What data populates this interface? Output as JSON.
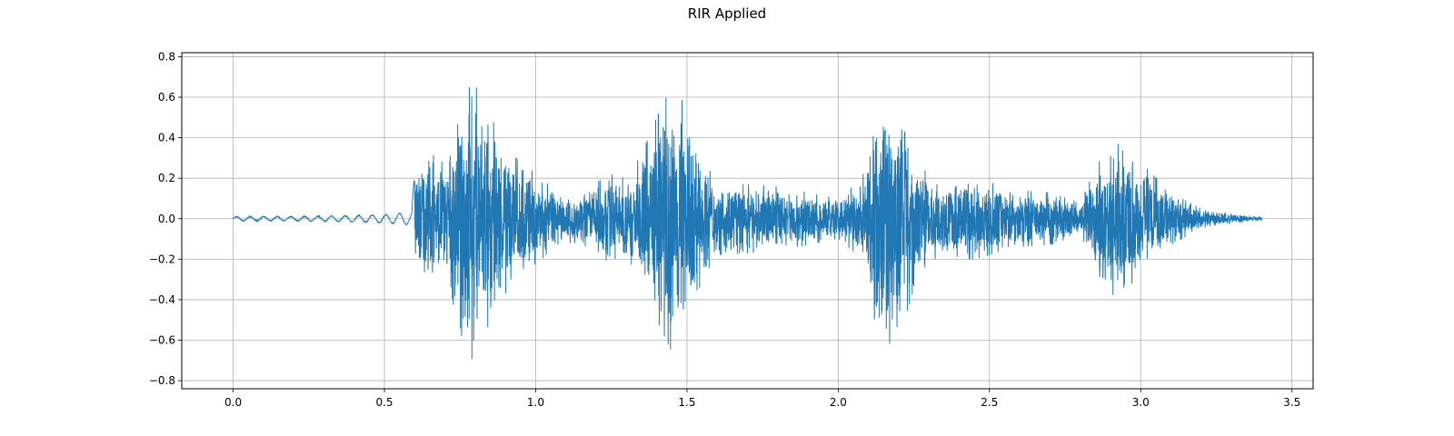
{
  "chart_data": {
    "type": "line",
    "title": "RIR Applied",
    "xlabel": "",
    "ylabel": "",
    "xlim": [
      -0.17,
      3.57
    ],
    "ylim": [
      -0.84,
      0.82
    ],
    "x_ticks": [
      0.0,
      0.5,
      1.0,
      1.5,
      2.0,
      2.5,
      3.0,
      3.5
    ],
    "x_tick_labels": [
      "0.0",
      "0.5",
      "1.0",
      "1.5",
      "2.0",
      "2.5",
      "3.0",
      "3.5"
    ],
    "y_ticks": [
      0.8,
      0.6,
      0.4,
      0.2,
      0.0,
      -0.2,
      -0.4,
      -0.6,
      -0.8
    ],
    "y_tick_labels": [
      "0.8",
      "0.6",
      "0.4",
      "0.2",
      "0.0",
      "−0.2",
      "−0.4",
      "−0.6",
      "−0.8"
    ],
    "grid": true,
    "series": [
      {
        "color": "#1f77b4",
        "duration": 3.4,
        "envelope": [
          [
            0.0,
            0.01
          ],
          [
            0.2,
            0.01
          ],
          [
            0.4,
            0.015
          ],
          [
            0.5,
            0.02
          ],
          [
            0.59,
            0.03
          ],
          [
            0.6,
            0.25
          ],
          [
            0.65,
            0.33
          ],
          [
            0.7,
            0.27
          ],
          [
            0.75,
            0.55
          ],
          [
            0.78,
            0.72
          ],
          [
            0.82,
            0.6
          ],
          [
            0.87,
            0.45
          ],
          [
            0.92,
            0.32
          ],
          [
            0.97,
            0.26
          ],
          [
            1.02,
            0.2
          ],
          [
            1.08,
            0.12
          ],
          [
            1.15,
            0.12
          ],
          [
            1.2,
            0.18
          ],
          [
            1.25,
            0.22
          ],
          [
            1.3,
            0.2
          ],
          [
            1.35,
            0.32
          ],
          [
            1.4,
            0.5
          ],
          [
            1.45,
            0.66
          ],
          [
            1.5,
            0.55
          ],
          [
            1.55,
            0.3
          ],
          [
            1.6,
            0.18
          ],
          [
            1.7,
            0.17
          ],
          [
            1.8,
            0.16
          ],
          [
            1.9,
            0.13
          ],
          [
            2.0,
            0.1
          ],
          [
            2.08,
            0.2
          ],
          [
            2.12,
            0.55
          ],
          [
            2.15,
            0.63
          ],
          [
            2.2,
            0.6
          ],
          [
            2.25,
            0.35
          ],
          [
            2.3,
            0.2
          ],
          [
            2.45,
            0.2
          ],
          [
            2.6,
            0.14
          ],
          [
            2.7,
            0.13
          ],
          [
            2.8,
            0.08
          ],
          [
            2.85,
            0.25
          ],
          [
            2.9,
            0.38
          ],
          [
            2.95,
            0.36
          ],
          [
            3.0,
            0.28
          ],
          [
            3.1,
            0.13
          ],
          [
            3.2,
            0.05
          ],
          [
            3.3,
            0.025
          ],
          [
            3.4,
            0.01
          ]
        ]
      }
    ]
  }
}
